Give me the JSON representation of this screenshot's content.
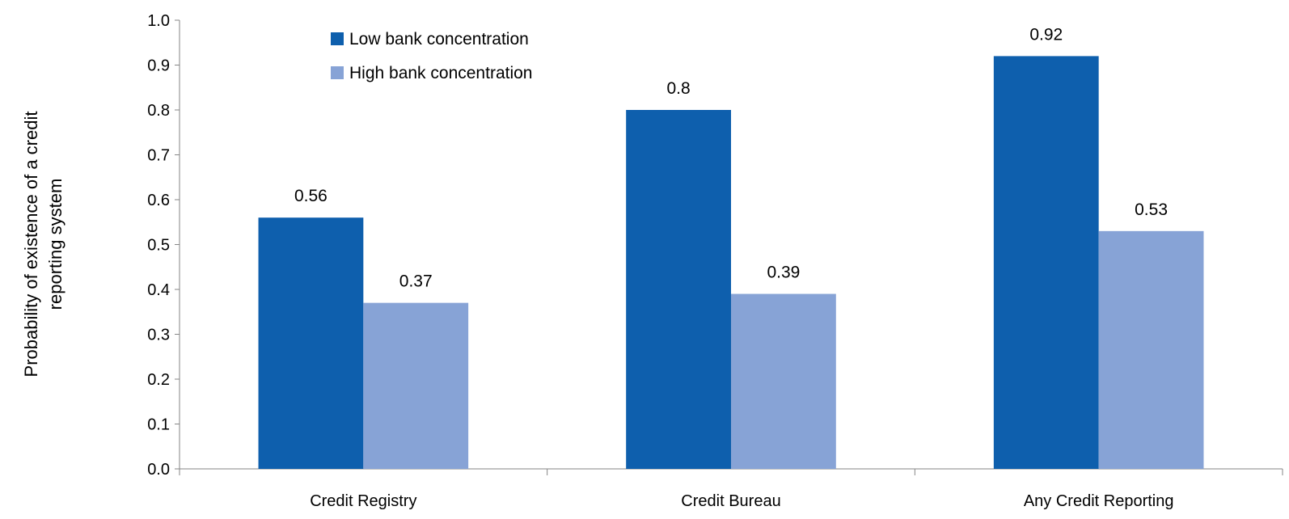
{
  "chart_data": {
    "type": "bar",
    "categories": [
      "Credit Registry",
      "Credit Bureau",
      "Any Credit Reporting"
    ],
    "series": [
      {
        "name": "Low bank concentration",
        "values": [
          0.56,
          0.8,
          0.92
        ],
        "color": "#0E5FAD"
      },
      {
        "name": "High bank concentration",
        "values": [
          0.37,
          0.39,
          0.53
        ],
        "color": "#87A3D6"
      }
    ],
    "data_labels": [
      [
        "0.56",
        "0.8",
        "0.92"
      ],
      [
        "0.37",
        "0.39",
        "0.53"
      ]
    ],
    "ylabel_lines": [
      "Probability of existence of a credit",
      "reporting system"
    ],
    "ylim": [
      0,
      1.0
    ],
    "yticks": [
      "0.0",
      "0.1",
      "0.2",
      "0.3",
      "0.4",
      "0.5",
      "0.6",
      "0.7",
      "0.8",
      "0.9",
      "1.0"
    ],
    "legend_position": "top-left",
    "grid": false
  }
}
